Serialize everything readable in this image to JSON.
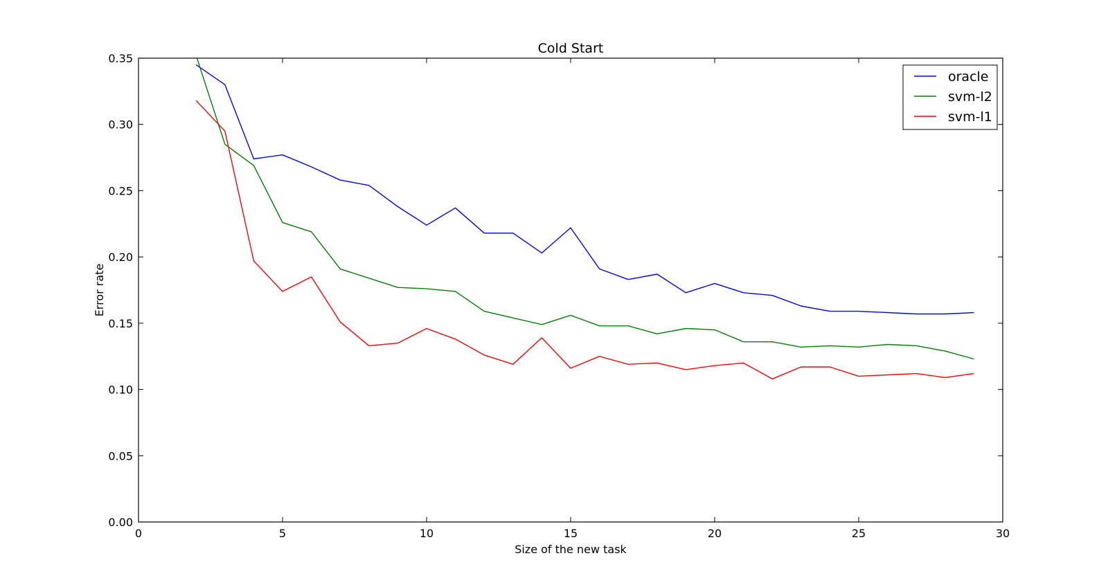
{
  "chart_data": {
    "type": "line",
    "title": "Cold Start",
    "xlabel": "Size of the new task",
    "ylabel": "Error rate",
    "xlim": [
      0,
      30
    ],
    "ylim": [
      0,
      0.35
    ],
    "xticks": [
      0,
      5,
      10,
      15,
      20,
      25,
      30
    ],
    "xtick_labels": [
      "0",
      "5",
      "10",
      "15",
      "20",
      "25",
      "30"
    ],
    "yticks": [
      0,
      0.05,
      0.1,
      0.15,
      0.2,
      0.25,
      0.3,
      0.35
    ],
    "ytick_labels": [
      "0.00",
      "0.05",
      "0.10",
      "0.15",
      "0.20",
      "0.25",
      "0.30",
      "0.35"
    ],
    "grid": false,
    "legend_position": "top-right",
    "x": [
      2,
      3,
      4,
      5,
      6,
      7,
      8,
      9,
      10,
      11,
      12,
      13,
      14,
      15,
      16,
      17,
      18,
      19,
      20,
      21,
      22,
      23,
      24,
      25,
      26,
      27,
      28,
      29
    ],
    "series": [
      {
        "name": "oracle",
        "color": "#0000ff",
        "values": [
          0.345,
          0.33,
          0.274,
          0.277,
          0.268,
          0.258,
          0.254,
          0.238,
          0.224,
          0.237,
          0.218,
          0.218,
          0.203,
          0.222,
          0.191,
          0.183,
          0.187,
          0.173,
          0.18,
          0.173,
          0.171,
          0.163,
          0.159,
          0.159,
          0.158,
          0.157,
          0.157,
          0.158
        ]
      },
      {
        "name": "svm-l2",
        "color": "#008000",
        "values": [
          0.352,
          0.285,
          0.269,
          0.226,
          0.219,
          0.191,
          0.184,
          0.177,
          0.176,
          0.174,
          0.159,
          0.154,
          0.149,
          0.156,
          0.148,
          0.148,
          0.142,
          0.146,
          0.145,
          0.136,
          0.136,
          0.132,
          0.133,
          0.132,
          0.134,
          0.133,
          0.129,
          0.123
        ]
      },
      {
        "name": "svm-l1",
        "color": "#ff0000",
        "values": [
          0.318,
          0.295,
          0.197,
          0.174,
          0.185,
          0.151,
          0.133,
          0.135,
          0.146,
          0.138,
          0.126,
          0.119,
          0.139,
          0.116,
          0.125,
          0.119,
          0.12,
          0.115,
          0.118,
          0.12,
          0.108,
          0.117,
          0.117,
          0.11,
          0.111,
          0.112,
          0.109,
          0.112
        ]
      }
    ]
  }
}
